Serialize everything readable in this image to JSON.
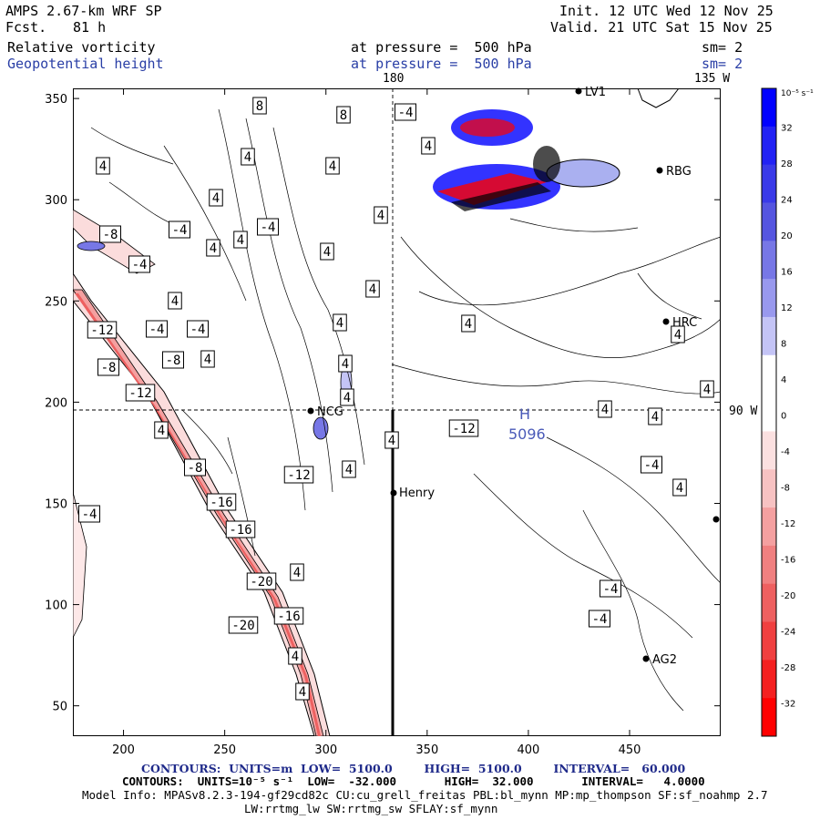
{
  "header": {
    "model": "AMPS 2.67-km WRF SP",
    "fcst_label": "Fcst.",
    "fcst_value": "81 h",
    "init": "Init. 12 UTC Wed 12 Nov 25",
    "valid": "Valid. 21 UTC Sat 15 Nov 25",
    "field1": "Relative vorticity",
    "field2": "Geopotential height",
    "pressure1": "at pressure =  500 hPa",
    "pressure2": "at pressure =  500 hPa",
    "sm1": "sm= 2",
    "sm2": "sm= 2",
    "lon_180": "180",
    "lon_135w": "135 W",
    "lon_90w": "90 W"
  },
  "map": {
    "stations": [
      {
        "name": "LV1"
      },
      {
        "name": "RBG"
      },
      {
        "name": "HRC"
      },
      {
        "name": "NCG"
      },
      {
        "name": "Henry"
      },
      {
        "name": "AG2"
      }
    ],
    "high_marker": "H",
    "high_value": "5096",
    "contour_labels": [
      "8",
      "8",
      "-4",
      "4",
      "4",
      "4",
      "4",
      "4",
      "-8",
      "-4",
      "4",
      "4",
      "-4",
      "-4",
      "4",
      "4",
      "4",
      "4",
      "4",
      "-12",
      "-4",
      "-4",
      "4",
      "-8",
      "-8",
      "4",
      "4",
      "4",
      "4",
      "-12",
      "4",
      "4",
      "4",
      "4",
      "-12",
      "4",
      "-8",
      "-12",
      "4",
      "-4",
      "-16",
      "4",
      "-16",
      "-4",
      "-20",
      "4",
      "-16",
      "-20",
      "4",
      "-4",
      "4",
      "-4"
    ]
  },
  "colorbar": {
    "units": "10⁻⁵ s⁻¹",
    "ticks": [
      "32",
      "28",
      "24",
      "20",
      "16",
      "12",
      "8",
      "4",
      "0",
      "-4",
      "-8",
      "-12",
      "-16",
      "-20",
      "-24",
      "-28",
      "-32"
    ],
    "colors": [
      "#0000ff",
      "#2222f4",
      "#3a3ae8",
      "#5555e0",
      "#7777e6",
      "#9999ee",
      "#c4c4f6",
      "#ffffff",
      "#ffffff",
      "#fbe0e0",
      "#f7c2c2",
      "#f4a0a0",
      "#f08080",
      "#ee6060",
      "#f04040",
      "#f42020",
      "#ff0000"
    ]
  },
  "axes": {
    "x_ticks": [
      "200",
      "250",
      "300",
      "350",
      "400",
      "450"
    ],
    "y_ticks": [
      "350",
      "300",
      "250",
      "200",
      "150",
      "100",
      "50"
    ]
  },
  "footer": {
    "line1": "CONTOURS:  UNITS=m  LOW=  5100.0        HIGH=  5100.0        INTERVAL=   60.000",
    "line2": "CONTOURS:  UNITS=10⁻⁵ s⁻¹  LOW=  -32.000       HIGH=  32.000       INTERVAL=   4.0000",
    "line3": "Model Info: MPASv8.2.3-194-gf29cd82c CU:cu_grell_freitas PBL:bl_mynn MP:mp_thompson SF:sf_noahmp 2.7",
    "line4": "LW:rrtmg_lw SW:rrtmg_sw SFLAY:sf_mynn"
  }
}
